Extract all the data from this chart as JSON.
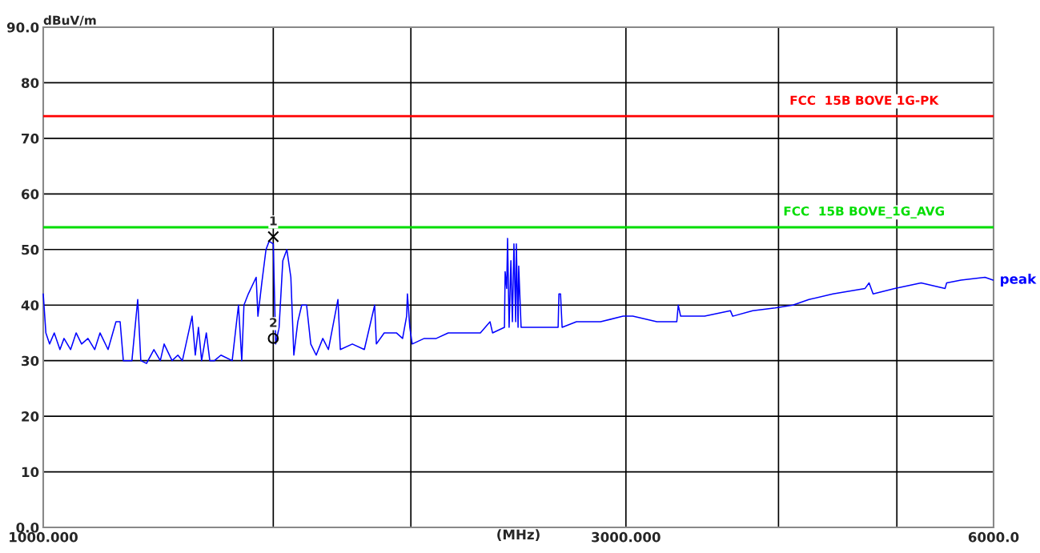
{
  "chart_data": {
    "type": "line",
    "xlabel": "(MHz)",
    "ylabel": "dBuV/m",
    "log": "x",
    "xlim": [
      1000,
      6000
    ],
    "ylim": [
      0,
      90
    ],
    "xticks": [
      {
        "value": 1000,
        "label": "1000.000"
      },
      {
        "value": 2000,
        "label": null
      },
      {
        "value": 3000,
        "label": "3000.000"
      },
      {
        "value": 4000,
        "label": null
      },
      {
        "value": 5000,
        "label": null
      },
      {
        "value": 6000,
        "label": "6000.0"
      }
    ],
    "yticks": [
      {
        "value": 0,
        "label": "0.0"
      },
      10,
      20,
      30,
      40,
      50,
      60,
      70,
      80,
      {
        "value": 90,
        "label": "90.0"
      }
    ],
    "grid": true,
    "legend": false,
    "series": [
      {
        "name": "peak",
        "color": "#0000ff",
        "marker": "none",
        "x": [
          1000,
          1005,
          1012,
          1021,
          1032,
          1040,
          1053,
          1064,
          1075,
          1088,
          1102,
          1113,
          1130,
          1147,
          1156,
          1163,
          1182,
          1195,
          1202,
          1215,
          1232,
          1247,
          1256,
          1275,
          1289,
          1300,
          1324,
          1332,
          1340,
          1348,
          1360,
          1369,
          1381,
          1398,
          1428,
          1445,
          1454,
          1460,
          1472,
          1494,
          1499,
          1510,
          1522,
          1531,
          1543,
          1550,
          1560,
          1571,
          1583,
          1595,
          1604,
          1616,
          1628,
          1643,
          1656,
          1673,
          1694,
          1712,
          1743,
          1751,
          1791,
          1832,
          1868,
          1874,
          1902,
          1946,
          1969,
          1984,
          1987,
          1996,
          2005,
          2051,
          2098,
          2146,
          2212,
          2280,
          2322,
          2333,
          2386,
          2389,
          2396,
          2400,
          2407,
          2415,
          2422,
          2429,
          2437,
          2440,
          2448,
          2451,
          2462,
          2477,
          2573,
          2640,
          2644,
          2652,
          2660,
          2733,
          2860,
          2984,
          3039,
          3180,
          3302,
          3311,
          3326,
          3480,
          3653,
          3669,
          3810,
          3975,
          4110,
          4236,
          4432,
          4709,
          4745,
          4781,
          4980,
          5234,
          5476,
          5492,
          5643,
          5904,
          5994
        ],
        "values": [
          42,
          35,
          33,
          35,
          32,
          34,
          32,
          35,
          33,
          34,
          32,
          35,
          32,
          37,
          37,
          30,
          30,
          41,
          30,
          29.5,
          32,
          30,
          33,
          30,
          31,
          30,
          38,
          31,
          36,
          30,
          35,
          30,
          30,
          31,
          30,
          40,
          30,
          40,
          42,
          45,
          38,
          44,
          50,
          51.5,
          51,
          33,
          36,
          48,
          50,
          45,
          31,
          37,
          40,
          40,
          33,
          31,
          34,
          32,
          41,
          32,
          33,
          32,
          40,
          33,
          35,
          35,
          34,
          38,
          42,
          36,
          33,
          34,
          34,
          35,
          35,
          35,
          37,
          35,
          36,
          46,
          43,
          52,
          36,
          48,
          37,
          51,
          37,
          51,
          36,
          47,
          36,
          36,
          36,
          36,
          42,
          42,
          36,
          37,
          37,
          38,
          38,
          37,
          37,
          40,
          38,
          38,
          39,
          38,
          39,
          39.5,
          40,
          41,
          42,
          43,
          44,
          42,
          43,
          44,
          43,
          44,
          44.5,
          45,
          44.5
        ]
      },
      {
        "type": "scatter",
        "color": "#000000",
        "marker": "cross",
        "x": [
          1543
        ],
        "values": [
          52.3
        ]
      },
      {
        "type": "scatter",
        "color": "#000000",
        "marker": "circle",
        "x": [
          1543
        ],
        "values": [
          34
        ]
      }
    ],
    "ref_lines": [
      {
        "axis": "y",
        "value": 74,
        "label": "FCC  15B BOVE 1G-PK",
        "color": "#ff0000"
      },
      {
        "axis": "y",
        "value": 54,
        "label": "FCC  15B BOVE_1G_AVG",
        "color": "#00dd00"
      },
      {
        "axis": "x",
        "value": 1543,
        "label": null,
        "color": "#000000"
      }
    ],
    "annotations": [
      {
        "text": "1",
        "x": 1543,
        "y": 52.3
      },
      {
        "text": "2",
        "x": 1543,
        "y": 34
      }
    ]
  }
}
